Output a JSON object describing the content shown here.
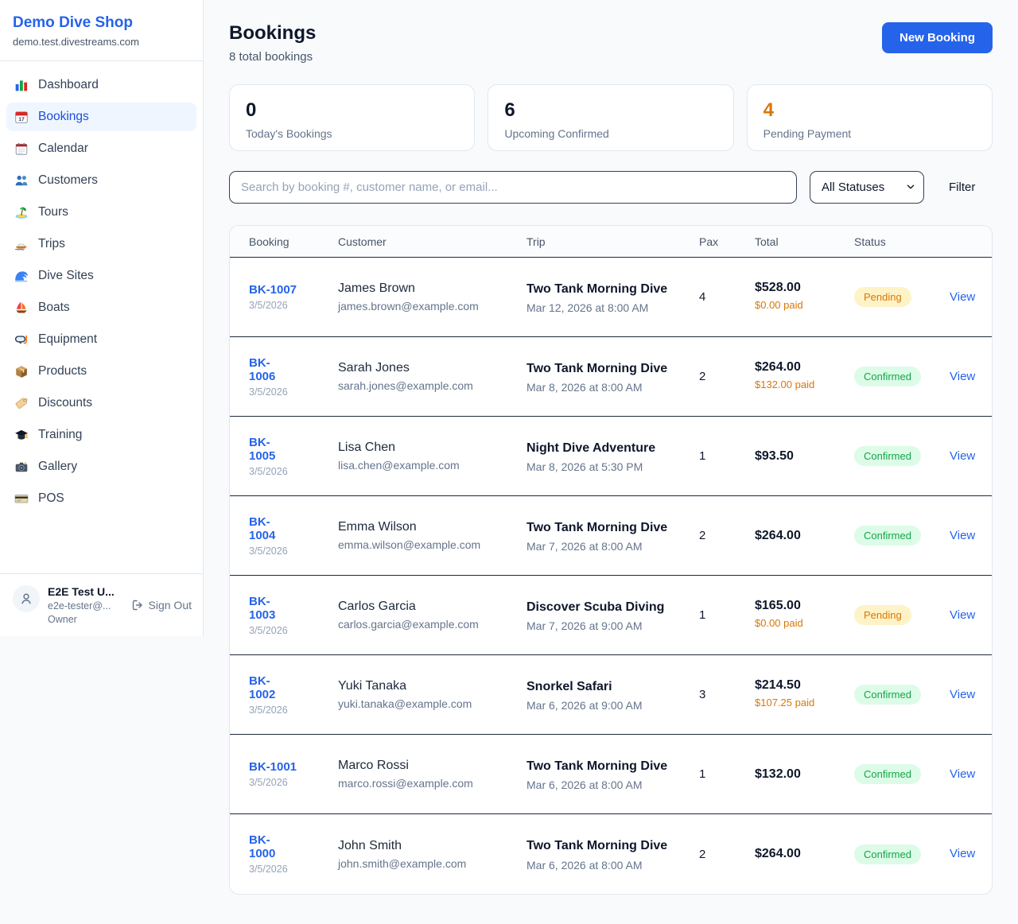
{
  "sidebar": {
    "brand": {
      "name": "Demo Dive Shop",
      "domain": "demo.test.divestreams.com"
    },
    "items": [
      {
        "label": "Dashboard",
        "icon": "bar-chart-icon",
        "active": false
      },
      {
        "label": "Bookings",
        "icon": "calendar-date-icon",
        "active": true
      },
      {
        "label": "Calendar",
        "icon": "calendar-icon",
        "active": false
      },
      {
        "label": "Customers",
        "icon": "people-icon",
        "active": false
      },
      {
        "label": "Tours",
        "icon": "island-icon",
        "active": false
      },
      {
        "label": "Trips",
        "icon": "speedboat-icon",
        "active": false
      },
      {
        "label": "Dive Sites",
        "icon": "wave-icon",
        "active": false
      },
      {
        "label": "Boats",
        "icon": "sailboat-icon",
        "active": false
      },
      {
        "label": "Equipment",
        "icon": "dive-mask-icon",
        "active": false
      },
      {
        "label": "Products",
        "icon": "package-icon",
        "active": false
      },
      {
        "label": "Discounts",
        "icon": "tag-icon",
        "active": false
      },
      {
        "label": "Training",
        "icon": "graduation-cap-icon",
        "active": false
      },
      {
        "label": "Gallery",
        "icon": "camera-icon",
        "active": false
      },
      {
        "label": "POS",
        "icon": "credit-card-icon",
        "active": false
      }
    ],
    "user": {
      "name": "E2E Test U...",
      "email": "e2e-tester@...",
      "role": "Owner",
      "sign_out_label": "Sign Out"
    }
  },
  "header": {
    "title": "Bookings",
    "subtitle": "8 total bookings",
    "new_booking_label": "New Booking"
  },
  "stats": [
    {
      "value": "0",
      "label": "Today's Bookings",
      "color": "#0f172a"
    },
    {
      "value": "6",
      "label": "Upcoming Confirmed",
      "color": "#0f172a"
    },
    {
      "value": "4",
      "label": "Pending Payment",
      "color": "#d97706"
    }
  ],
  "filters": {
    "search_placeholder": "Search by booking #, customer name, or email...",
    "status_selected": "All Statuses",
    "filter_label": "Filter"
  },
  "table": {
    "columns": [
      "Booking",
      "Customer",
      "Trip",
      "Pax",
      "Total",
      "Status"
    ],
    "rows": [
      {
        "id": "BK-1007",
        "date": "3/5/2026",
        "customer": "James Brown",
        "email": "james.brown@example.com",
        "trip": "Two Tank Morning Dive",
        "trip_datetime": "Mar 12, 2026 at 8:00 AM",
        "pax": "4",
        "total": "$528.00",
        "paid": "$0.00 paid",
        "status": "Pending",
        "action": "View"
      },
      {
        "id": "BK-\n1006",
        "date": "3/5/2026",
        "customer": "Sarah Jones",
        "email": "sarah.jones@example.com",
        "trip": "Two Tank Morning Dive",
        "trip_datetime": "Mar 8, 2026 at 8:00 AM",
        "pax": "2",
        "total": "$264.00",
        "paid": "$132.00 paid",
        "status": "Confirmed",
        "action": "View"
      },
      {
        "id": "BK-\n1005",
        "date": "3/5/2026",
        "customer": "Lisa Chen",
        "email": "lisa.chen@example.com",
        "trip": "Night Dive Adventure",
        "trip_datetime": "Mar 8, 2026 at 5:30 PM",
        "pax": "1",
        "total": "$93.50",
        "paid": "",
        "status": "Confirmed",
        "action": "View"
      },
      {
        "id": "BK-\n1004",
        "date": "3/5/2026",
        "customer": "Emma Wilson",
        "email": "emma.wilson@example.com",
        "trip": "Two Tank Morning Dive",
        "trip_datetime": "Mar 7, 2026 at 8:00 AM",
        "pax": "2",
        "total": "$264.00",
        "paid": "",
        "status": "Confirmed",
        "action": "View"
      },
      {
        "id": "BK-\n1003",
        "date": "3/5/2026",
        "customer": "Carlos Garcia",
        "email": "carlos.garcia@example.com",
        "trip": "Discover Scuba Diving",
        "trip_datetime": "Mar 7, 2026 at 9:00 AM",
        "pax": "1",
        "total": "$165.00",
        "paid": "$0.00 paid",
        "status": "Pending",
        "action": "View"
      },
      {
        "id": "BK-\n1002",
        "date": "3/5/2026",
        "customer": "Yuki Tanaka",
        "email": "yuki.tanaka@example.com",
        "trip": "Snorkel Safari",
        "trip_datetime": "Mar 6, 2026 at 9:00 AM",
        "pax": "3",
        "total": "$214.50",
        "paid": "$107.25 paid",
        "status": "Confirmed",
        "action": "View"
      },
      {
        "id": "BK-1001",
        "date": "3/5/2026",
        "customer": "Marco Rossi",
        "email": "marco.rossi@example.com",
        "trip": "Two Tank Morning Dive",
        "trip_datetime": "Mar 6, 2026 at 8:00 AM",
        "pax": "1",
        "total": "$132.00",
        "paid": "",
        "status": "Confirmed",
        "action": "View"
      },
      {
        "id": "BK-\n1000",
        "date": "3/5/2026",
        "customer": "John Smith",
        "email": "john.smith@example.com",
        "trip": "Two Tank Morning Dive",
        "trip_datetime": "Mar 6, 2026 at 8:00 AM",
        "pax": "2",
        "total": "$264.00",
        "paid": "",
        "status": "Confirmed",
        "action": "View"
      }
    ]
  },
  "colors": {
    "accent_blue": "#2563eb",
    "pending_text": "#d97706",
    "pending_bg": "#fef3c7",
    "confirmed_text": "#16a34a",
    "confirmed_bg": "#dcfce7",
    "paid_orange": "#d97706"
  }
}
